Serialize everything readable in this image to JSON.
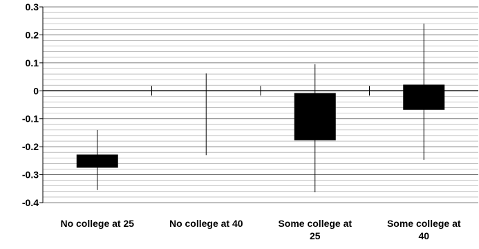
{
  "chart_data": {
    "type": "candlestick",
    "title": "",
    "xlabel": "",
    "ylabel": "",
    "ylim": [
      -0.4,
      0.3
    ],
    "y_major_step": 0.1,
    "y_minor_step": 0.02,
    "y_tick_labels": [
      "0.3",
      "0.2",
      "0.1",
      "0",
      "-0.1",
      "-0.2",
      "-0.3",
      "-0.4"
    ],
    "grid": true,
    "categories": [
      [
        "No college at 25"
      ],
      [
        "No college at 40"
      ],
      [
        "Some college at",
        "25"
      ],
      [
        "Some college at",
        "40"
      ]
    ],
    "series": [
      {
        "points": [
          {
            "high": -0.14,
            "low": -0.355,
            "box_top": -0.228,
            "box_bottom": -0.275
          },
          {
            "high": 0.062,
            "low": -0.23,
            "box_top": null,
            "box_bottom": null
          },
          {
            "high": 0.095,
            "low": -0.363,
            "box_top": -0.008,
            "box_bottom": -0.177
          },
          {
            "high": 0.24,
            "low": -0.247,
            "box_top": 0.022,
            "box_bottom": -0.068
          }
        ]
      }
    ]
  }
}
